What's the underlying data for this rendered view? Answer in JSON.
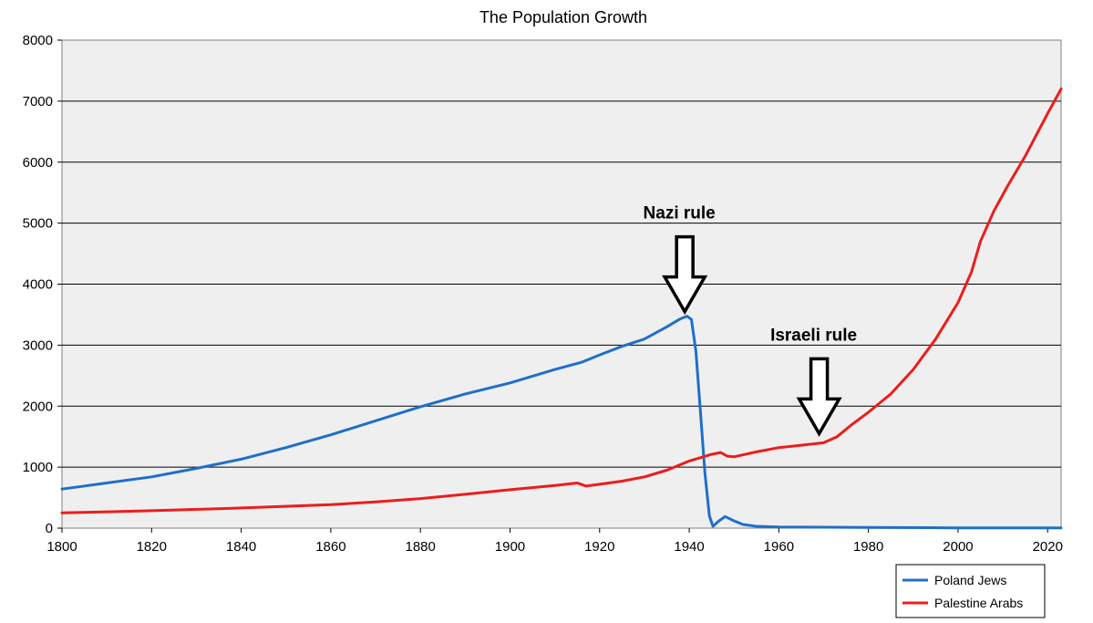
{
  "chart_data": {
    "type": "line",
    "title": "The Population Growth",
    "xlabel": "",
    "ylabel": "",
    "xlim": [
      1800,
      2023
    ],
    "ylim": [
      0,
      8000
    ],
    "x_ticks": [
      "1800",
      "1820",
      "1840",
      "1860",
      "1880",
      "1900",
      "1920",
      "1940",
      "1960",
      "1980",
      "2000",
      "2020"
    ],
    "y_ticks": [
      "0",
      "1000",
      "2000",
      "3000",
      "4000",
      "5000",
      "6000",
      "7000",
      "8000"
    ],
    "grid": "horizontal",
    "legend_position": "bottom-right",
    "background_color": "#efefef",
    "series": [
      {
        "name": "Poland Jews",
        "color": "#1f6fc8",
        "points": [
          [
            1800,
            640
          ],
          [
            1810,
            740
          ],
          [
            1820,
            840
          ],
          [
            1830,
            980
          ],
          [
            1840,
            1130
          ],
          [
            1850,
            1320
          ],
          [
            1860,
            1530
          ],
          [
            1870,
            1760
          ],
          [
            1880,
            1990
          ],
          [
            1890,
            2200
          ],
          [
            1900,
            2380
          ],
          [
            1910,
            2600
          ],
          [
            1916,
            2720
          ],
          [
            1920,
            2840
          ],
          [
            1925,
            2980
          ],
          [
            1930,
            3100
          ],
          [
            1935,
            3300
          ],
          [
            1938,
            3430
          ],
          [
            1939.5,
            3475
          ],
          [
            1940.5,
            3420
          ],
          [
            1941.5,
            2900
          ],
          [
            1942.5,
            1900
          ],
          [
            1943.5,
            900
          ],
          [
            1944.5,
            200
          ],
          [
            1945.3,
            30
          ],
          [
            1946.5,
            110
          ],
          [
            1948,
            190
          ],
          [
            1950,
            120
          ],
          [
            1952,
            60
          ],
          [
            1955,
            30
          ],
          [
            1960,
            20
          ],
          [
            1970,
            15
          ],
          [
            1980,
            10
          ],
          [
            2000,
            5
          ],
          [
            2023,
            5
          ]
        ]
      },
      {
        "name": "Palestine Arabs",
        "color": "#ee1c1c",
        "points": [
          [
            1800,
            250
          ],
          [
            1820,
            285
          ],
          [
            1840,
            330
          ],
          [
            1860,
            385
          ],
          [
            1870,
            430
          ],
          [
            1880,
            485
          ],
          [
            1890,
            555
          ],
          [
            1900,
            630
          ],
          [
            1910,
            700
          ],
          [
            1915,
            740
          ],
          [
            1917,
            690
          ],
          [
            1920,
            720
          ],
          [
            1925,
            770
          ],
          [
            1930,
            840
          ],
          [
            1935,
            950
          ],
          [
            1940,
            1100
          ],
          [
            1945,
            1210
          ],
          [
            1947,
            1240
          ],
          [
            1948.5,
            1180
          ],
          [
            1950,
            1170
          ],
          [
            1955,
            1250
          ],
          [
            1960,
            1320
          ],
          [
            1965,
            1360
          ],
          [
            1970,
            1400
          ],
          [
            1973,
            1500
          ],
          [
            1976,
            1680
          ],
          [
            1980,
            1900
          ],
          [
            1985,
            2200
          ],
          [
            1990,
            2600
          ],
          [
            1995,
            3100
          ],
          [
            2000,
            3700
          ],
          [
            2003,
            4200
          ],
          [
            2005,
            4700
          ],
          [
            2008,
            5200
          ],
          [
            2011,
            5600
          ],
          [
            2015,
            6100
          ],
          [
            2020,
            6800
          ],
          [
            2023,
            7200
          ]
        ]
      }
    ],
    "annotations": [
      {
        "text": "Nazi rule",
        "arrow_target": [
          1939,
          3550
        ]
      },
      {
        "text": "Israeli rule",
        "arrow_target": [
          1969,
          1550
        ]
      }
    ]
  }
}
